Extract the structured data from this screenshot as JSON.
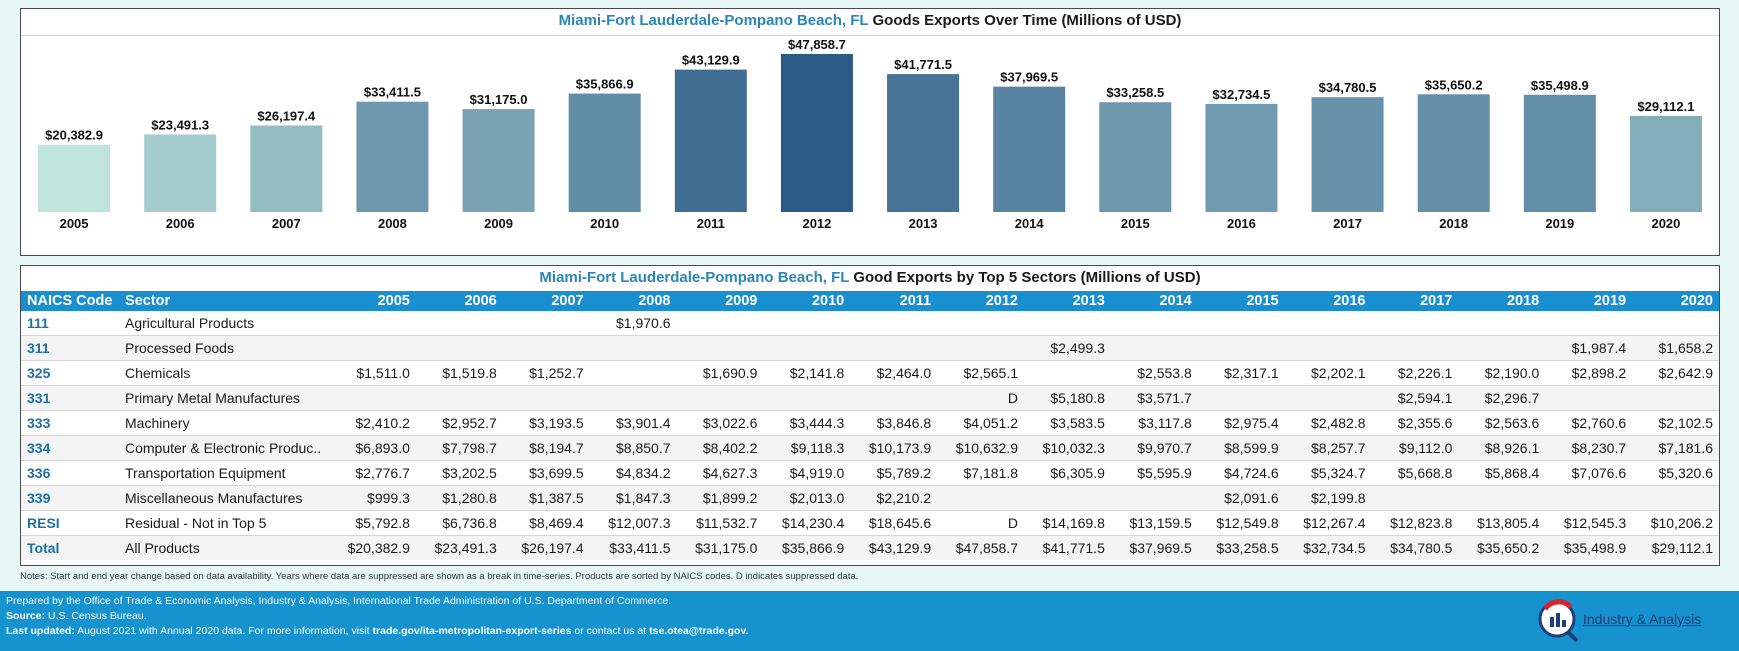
{
  "chart_title": {
    "accent": "Miami-Fort Lauderdale-Pompano Beach, FL",
    "rest": " Goods Exports Over Time (Millions of USD)"
  },
  "chart_data": {
    "type": "bar",
    "title": "Miami-Fort Lauderdale-Pompano Beach, FL Goods Exports Over Time (Millions of USD)",
    "categories": [
      "2005",
      "2006",
      "2007",
      "2008",
      "2009",
      "2010",
      "2011",
      "2012",
      "2013",
      "2014",
      "2015",
      "2016",
      "2017",
      "2018",
      "2019",
      "2020"
    ],
    "values": [
      20382.9,
      23491.3,
      26197.4,
      33411.5,
      31175.0,
      35866.9,
      43129.9,
      47858.7,
      41771.5,
      37969.5,
      33258.5,
      32734.5,
      34780.5,
      35650.2,
      35498.9,
      29112.1
    ],
    "labels": [
      "$20,382.9",
      "$23,491.3",
      "$26,197.4",
      "$33,411.5",
      "$31,175.0",
      "$35,866.9",
      "$43,129.9",
      "$47,858.7",
      "$41,771.5",
      "$37,969.5",
      "$33,258.5",
      "$32,734.5",
      "$34,780.5",
      "$35,650.2",
      "$35,498.9",
      "$29,112.1"
    ],
    "ylim": [
      0,
      47858.7
    ],
    "color_scale": [
      "#bfe4dc",
      "#2b5a86"
    ],
    "xlabel": "",
    "ylabel": ""
  },
  "table": {
    "title_accent": "Miami-Fort Lauderdale-Pompano Beach, FL",
    "title_rest": " Good Exports by Top 5 Sectors (Millions of USD)",
    "header_code": "NAICS Code",
    "header_sector": "Sector",
    "years": [
      "2005",
      "2006",
      "2007",
      "2008",
      "2009",
      "2010",
      "2011",
      "2012",
      "2013",
      "2014",
      "2015",
      "2016",
      "2017",
      "2018",
      "2019",
      "2020"
    ],
    "rows": [
      {
        "code": "111",
        "sector": "Agricultural Products",
        "values": [
          "",
          "",
          "",
          "$1,970.6",
          "",
          "",
          "",
          "",
          "",
          "",
          "",
          "",
          "",
          "",
          "",
          ""
        ]
      },
      {
        "code": "311",
        "sector": "Processed Foods",
        "values": [
          "",
          "",
          "",
          "",
          "",
          "",
          "",
          "",
          "$2,499.3",
          "",
          "",
          "",
          "",
          "",
          "$1,987.4",
          "$1,658.2"
        ]
      },
      {
        "code": "325",
        "sector": "Chemicals",
        "values": [
          "$1,511.0",
          "$1,519.8",
          "$1,252.7",
          "",
          "$1,690.9",
          "$2,141.8",
          "$2,464.0",
          "$2,565.1",
          "",
          "$2,553.8",
          "$2,317.1",
          "$2,202.1",
          "$2,226.1",
          "$2,190.0",
          "$2,898.2",
          "$2,642.9"
        ]
      },
      {
        "code": "331",
        "sector": "Primary Metal Manufactures",
        "values": [
          "",
          "",
          "",
          "",
          "",
          "",
          "",
          "D",
          "$5,180.8",
          "$3,571.7",
          "",
          "",
          "$2,594.1",
          "$2,296.7",
          "",
          ""
        ]
      },
      {
        "code": "333",
        "sector": "Machinery",
        "values": [
          "$2,410.2",
          "$2,952.7",
          "$3,193.5",
          "$3,901.4",
          "$3,022.6",
          "$3,444.3",
          "$3,846.8",
          "$4,051.2",
          "$3,583.5",
          "$3,117.8",
          "$2,975.4",
          "$2,482.8",
          "$2,355.6",
          "$2,563.6",
          "$2,760.6",
          "$2,102.5"
        ]
      },
      {
        "code": "334",
        "sector": "Computer & Electronic Produc..",
        "values": [
          "$6,893.0",
          "$7,798.7",
          "$8,194.7",
          "$8,850.7",
          "$8,402.2",
          "$9,118.3",
          "$10,173.9",
          "$10,632.9",
          "$10,032.3",
          "$9,970.7",
          "$8,599.9",
          "$8,257.7",
          "$9,112.0",
          "$8,926.1",
          "$8,230.7",
          "$7,181.6"
        ]
      },
      {
        "code": "336",
        "sector": "Transportation Equipment",
        "values": [
          "$2,776.7",
          "$3,202.5",
          "$3,699.5",
          "$4,834.2",
          "$4,627.3",
          "$4,919.0",
          "$5,789.2",
          "$7,181.8",
          "$6,305.9",
          "$5,595.9",
          "$4,724.6",
          "$5,324.7",
          "$5,668.8",
          "$5,868.4",
          "$7,076.6",
          "$5,320.6"
        ]
      },
      {
        "code": "339",
        "sector": "Miscellaneous Manufactures",
        "values": [
          "$999.3",
          "$1,280.8",
          "$1,387.5",
          "$1,847.3",
          "$1,899.2",
          "$2,013.0",
          "$2,210.2",
          "",
          "",
          "",
          "$2,091.6",
          "$2,199.8",
          "",
          "",
          "",
          ""
        ]
      },
      {
        "code": "RESI",
        "sector": "Residual - Not in Top 5",
        "values": [
          "$5,792.8",
          "$6,736.8",
          "$8,469.4",
          "$12,007.3",
          "$11,532.7",
          "$14,230.4",
          "$18,645.6",
          "D",
          "$14,169.8",
          "$13,159.5",
          "$12,549.8",
          "$12,267.4",
          "$12,823.8",
          "$13,805.4",
          "$12,545.3",
          "$10,206.2"
        ]
      },
      {
        "code": "Total",
        "sector": "All Products",
        "values": [
          "$20,382.9",
          "$23,491.3",
          "$26,197.4",
          "$33,411.5",
          "$31,175.0",
          "$35,866.9",
          "$43,129.9",
          "$47,858.7",
          "$41,771.5",
          "$37,969.5",
          "$33,258.5",
          "$32,734.5",
          "$34,780.5",
          "$35,650.2",
          "$35,498.9",
          "$29,112.1"
        ]
      }
    ]
  },
  "notes": "Notes:  Start and end year change based on data availability.  Years where data are suppressed are shown as a break in time-series. Products are sorted by NAICS codes. D indicates suppressed data.",
  "footer": {
    "prepared": "Prepared by the Office of Trade & Economic Analysis, Industry & Analysis, International Trade Administration of U.S. Department of  Commerce.",
    "source_label": "Source:",
    "source_text": " U.S. Census Bureau.",
    "updated_label": "Last updated:",
    "updated_text": " August 2021 with Annual 2020 data.  For more information, visit ",
    "link1": "trade.gov/ita-metropolitan-export-series",
    "or_text": " or contact us at ",
    "link2": "tse.otea@trade.gov.",
    "logo_text": "Industry & Analysis"
  },
  "colors": {
    "header_blue": "#1a8fd0",
    "accent_blue": "#2a86b5",
    "footer_blue": "#1692cf"
  },
  "icons": {
    "logo": "industry-analysis-logo-icon"
  }
}
